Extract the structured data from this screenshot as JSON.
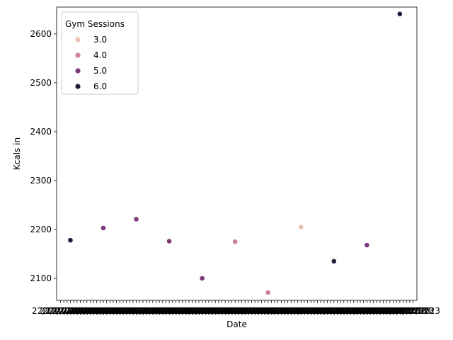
{
  "chart_data": {
    "type": "scatter",
    "xlabel": "Date",
    "ylabel": "Kcals in",
    "legend": {
      "title": "Gym Sessions",
      "placement": "top-left",
      "entries": [
        {
          "label": "3.0",
          "color": "#ebc1b7"
        },
        {
          "label": "4.0",
          "color": "#cd809c"
        },
        {
          "label": "5.0",
          "color": "#7d3a7c"
        },
        {
          "label": "6.0",
          "color": "#231a39"
        }
      ]
    },
    "x_category_count": 108,
    "x_tick_label_text": "22/12/2023",
    "ylim": [
      2055,
      2655
    ],
    "yticks": [
      2100,
      2200,
      2300,
      2400,
      2500,
      2600
    ],
    "points": [
      {
        "x_index": 3,
        "y": 2178,
        "gym_sessions": 6.0
      },
      {
        "x_index": 13,
        "y": 2203,
        "gym_sessions": 5.0
      },
      {
        "x_index": 23,
        "y": 2221,
        "gym_sessions": 5.0
      },
      {
        "x_index": 33,
        "y": 2176,
        "gym_sessions": 5.0
      },
      {
        "x_index": 43,
        "y": 2100,
        "gym_sessions": 5.0
      },
      {
        "x_index": 53,
        "y": 2175,
        "gym_sessions": 4.0
      },
      {
        "x_index": 63,
        "y": 2071,
        "gym_sessions": 4.0
      },
      {
        "x_index": 73,
        "y": 2205,
        "gym_sessions": 3.0
      },
      {
        "x_index": 83,
        "y": 2135,
        "gym_sessions": 6.0
      },
      {
        "x_index": 93,
        "y": 2168,
        "gym_sessions": 5.0
      },
      {
        "x_index": 103,
        "y": 2641,
        "gym_sessions": 6.0
      }
    ]
  }
}
